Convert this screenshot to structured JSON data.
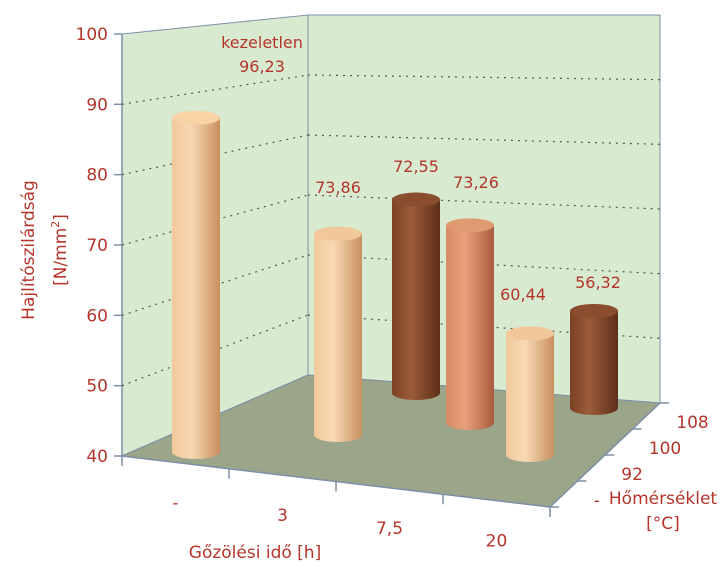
{
  "chart_data": {
    "type": "bar",
    "subtype": "3d-cylinder",
    "title": "",
    "ylabel_line1": "Hajlítószilárdság",
    "ylabel_line2_prefix": "[N/mm",
    "ylabel_line2_sup": "2",
    "ylabel_line2_suffix": "]",
    "xlabel": "Gőzölési idő [h]",
    "zlabel_line1": "Hőmérséklet",
    "zlabel_line2": "[°C]",
    "ylim": [
      40,
      100
    ],
    "yticks": [
      "40",
      "50",
      "60",
      "70",
      "80",
      "90",
      "100"
    ],
    "x_categories": [
      "-",
      "3",
      "7,5",
      "20"
    ],
    "z_categories": [
      "-",
      "92",
      "100",
      "108"
    ],
    "grid": true,
    "colors": {
      "text": "#b5352b",
      "back_wall": "#d8ead0",
      "floor": "#9aa58a",
      "light_bar": "#e9b27d",
      "mid_bar": "#cd7f5c",
      "dark_bar": "#8a4e2f"
    },
    "series": [
      {
        "x": "-",
        "temp": "-",
        "value": 96.23,
        "label": "96,23",
        "note": "kezeletlen"
      },
      {
        "x": "7,5",
        "temp": "92",
        "value": 73.86,
        "label": "73,86"
      },
      {
        "x": "7,5",
        "temp": "108",
        "value": 72.55,
        "label": "72,55"
      },
      {
        "x": "20",
        "temp": "100",
        "value": 73.26,
        "label": "73,26"
      },
      {
        "x": "20",
        "temp": "92",
        "value": 60.44,
        "label": "60,44"
      },
      {
        "x": "20",
        "temp": "108",
        "value": 56.32,
        "label": "56,32"
      }
    ]
  }
}
